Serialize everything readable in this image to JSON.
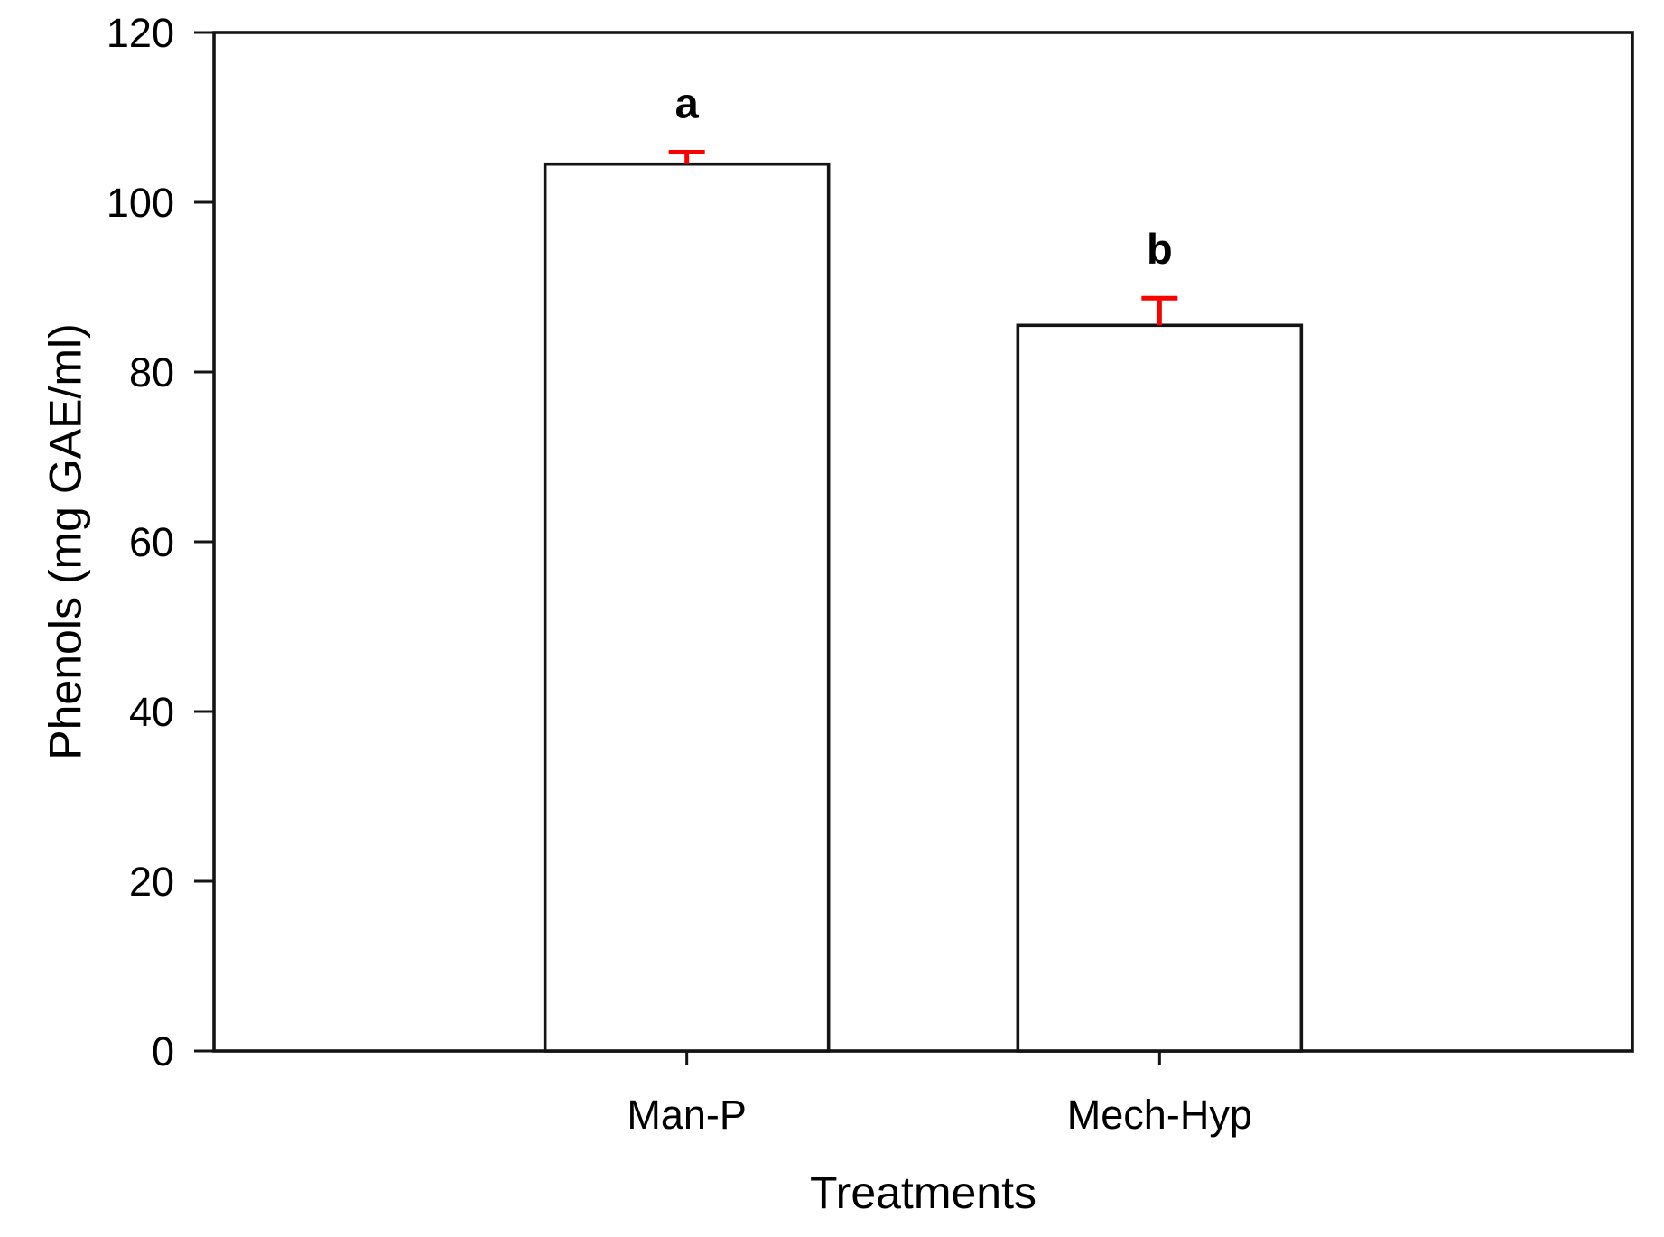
{
  "figure": {
    "background": "#ffffff"
  },
  "chart_data": {
    "type": "bar",
    "title": "",
    "xlabel": "Treatments",
    "ylabel": "Phenols (mg GAE/ml)",
    "categories": [
      "Man-P",
      "Mech-Hyp"
    ],
    "values": [
      104.5,
      85.5
    ],
    "error_upper": [
      1.4,
      3.2
    ],
    "annotations": [
      "a",
      "b"
    ],
    "ylim": [
      0,
      120
    ],
    "yticks": [
      0,
      20,
      40,
      60,
      80,
      100,
      120
    ],
    "grid": false,
    "legend": "none",
    "frame": "full-box",
    "bar_fill": "#ffffff",
    "bar_stroke": "#141414",
    "axis_color": "#141414",
    "error_color": "#fa0000",
    "text_color": "#000000"
  }
}
